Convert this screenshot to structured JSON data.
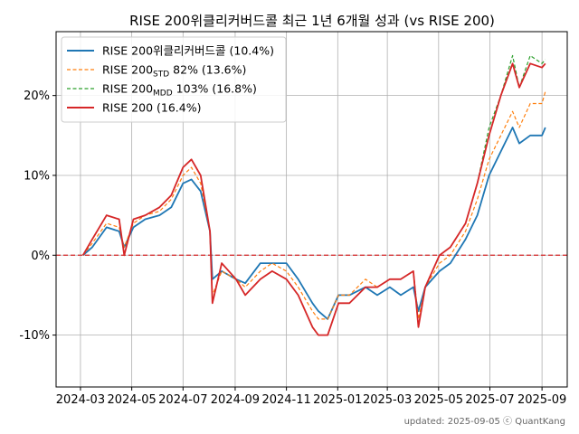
{
  "chart_data": {
    "type": "line",
    "title": "RISE 200위클리커버드콜 최근 1년 6개월 성과 (vs RISE 200)",
    "xlabel": "",
    "ylabel": "",
    "x_tick_labels": [
      "2024-03",
      "2024-05",
      "2024-07",
      "2024-09",
      "2024-11",
      "2025-01",
      "2025-03",
      "2025-05",
      "2025-07",
      "2025-09"
    ],
    "y_tick_labels": [
      "-10%",
      "0%",
      "10%",
      "20%"
    ],
    "ylim": [
      -16.5,
      28
    ],
    "grid": true,
    "legend_position": "top-left",
    "zero_line": {
      "value": 0,
      "color": "#d62728",
      "style": "dashed"
    },
    "x_dates": [
      "2024-03-04",
      "2024-03-15",
      "2024-04-01",
      "2024-04-16",
      "2024-04-22",
      "2024-05-03",
      "2024-05-17",
      "2024-06-03",
      "2024-06-17",
      "2024-07-01",
      "2024-07-11",
      "2024-07-22",
      "2024-08-02",
      "2024-08-05",
      "2024-08-16",
      "2024-09-02",
      "2024-09-13",
      "2024-10-01",
      "2024-10-15",
      "2024-11-01",
      "2024-11-15",
      "2024-12-02",
      "2024-12-09",
      "2024-12-20",
      "2025-01-02",
      "2025-01-15",
      "2025-02-03",
      "2025-02-17",
      "2025-03-04",
      "2025-03-17",
      "2025-04-01",
      "2025-04-07",
      "2025-04-15",
      "2025-05-02",
      "2025-05-15",
      "2025-06-02",
      "2025-06-16",
      "2025-06-30",
      "2025-07-14",
      "2025-07-28",
      "2025-08-05",
      "2025-08-18",
      "2025-09-01",
      "2025-09-05"
    ],
    "series": [
      {
        "name": "RISE 200위클리커버드콜",
        "legend_label": "RISE 200위클리커버드콜 (10.4%)",
        "color": "#1f77b4",
        "dashed": false,
        "values": [
          0,
          1,
          3.5,
          3,
          1,
          3.5,
          4.5,
          5,
          6,
          9,
          9.5,
          8,
          3,
          -3,
          -2,
          -3,
          -3.5,
          -1,
          -1,
          -1,
          -3,
          -6,
          -7,
          -8,
          -5,
          -5,
          -4,
          -5,
          -4,
          -5,
          -4,
          -7,
          -4,
          -2,
          -1,
          2,
          5,
          10,
          13,
          16,
          14,
          15,
          15,
          16
        ]
      },
      {
        "name": "RISE 200STD 82%",
        "legend_label": "RISE 200",
        "legend_sub": "STD",
        "legend_suffix": " 82% (13.6%)",
        "color": "#ff7f0e",
        "dashed": true,
        "values": [
          0,
          1.5,
          4,
          3.5,
          1,
          4,
          5,
          5.5,
          7,
          10,
          11,
          9,
          3,
          -5,
          -2,
          -3,
          -4,
          -2,
          -1,
          -2,
          -4,
          -7,
          -8,
          -8,
          -5,
          -5,
          -3,
          -4,
          -3,
          -3,
          -2,
          -8,
          -4,
          -1,
          0,
          3,
          7,
          12,
          15,
          18,
          16,
          19,
          19,
          20.5
        ]
      },
      {
        "name": "RISE 200MDD 103%",
        "legend_label": "RISE 200",
        "legend_sub": "MDD",
        "legend_suffix": " 103% (16.8%)",
        "color": "#2ca02c",
        "dashed": true,
        "values": [
          0,
          2,
          5,
          4.5,
          0,
          4.5,
          5,
          6,
          7.5,
          11,
          12,
          10,
          3,
          -6,
          -1,
          -3,
          -5,
          -3,
          -2,
          -3,
          -5,
          -9,
          -10,
          -10,
          -6,
          -6,
          -4,
          -4,
          -3,
          -3,
          -2,
          -9,
          -4,
          0,
          1,
          4,
          9,
          16,
          20,
          25,
          21,
          25,
          24,
          24.5
        ]
      },
      {
        "name": "RISE 200",
        "legend_label": "RISE 200 (16.4%)",
        "color": "#d62728",
        "dashed": false,
        "values": [
          0,
          2,
          5,
          4.5,
          0,
          4.5,
          5,
          6,
          7.5,
          11,
          12,
          10,
          3,
          -6,
          -1,
          -3,
          -5,
          -3,
          -2,
          -3,
          -5,
          -9,
          -10,
          -10,
          -6,
          -6,
          -4,
          -4,
          -3,
          -3,
          -2,
          -9,
          -4,
          0,
          1,
          4,
          9,
          15,
          20,
          24,
          21,
          24,
          23.5,
          24
        ]
      }
    ]
  },
  "footer": {
    "text": "updated: 2025-09-05 ⓒ QuantKang"
  }
}
